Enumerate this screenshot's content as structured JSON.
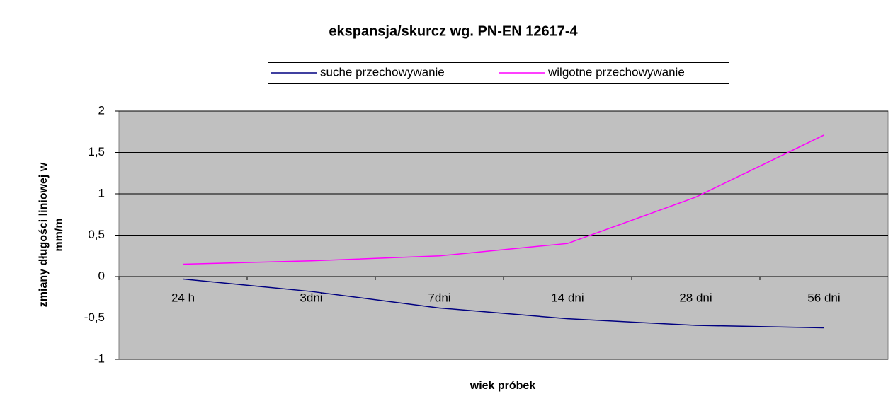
{
  "chart_data": {
    "type": "line",
    "title": "ekspansja/skurcz wg. PN-EN 12617-4",
    "x_label": "wiek próbek",
    "y_label": "zmiany długości liniowej w mm/m",
    "categories": [
      "24 h",
      "3dni",
      "7dni",
      "14 dni",
      "28 dni",
      "56 dni"
    ],
    "series": [
      {
        "name": "suche przechowywanie",
        "color": "#000080",
        "values": [
          -0.03,
          -0.18,
          -0.38,
          -0.51,
          -0.59,
          -0.62
        ]
      },
      {
        "name": "wilgotne przechowywanie",
        "color": "#ff00ff",
        "values": [
          0.15,
          0.19,
          0.25,
          0.4,
          0.96,
          1.71
        ]
      }
    ],
    "ylim": [
      -1,
      2
    ],
    "yticks": [
      -1,
      {
        "value": -0.5,
        "label": "-0,5"
      },
      0,
      {
        "value": 0.5,
        "label": "0,5"
      },
      1,
      {
        "value": 1.5,
        "label": "1,5"
      },
      2
    ],
    "grid": true,
    "legend": "top",
    "plot_background": "#c0c0c0"
  }
}
